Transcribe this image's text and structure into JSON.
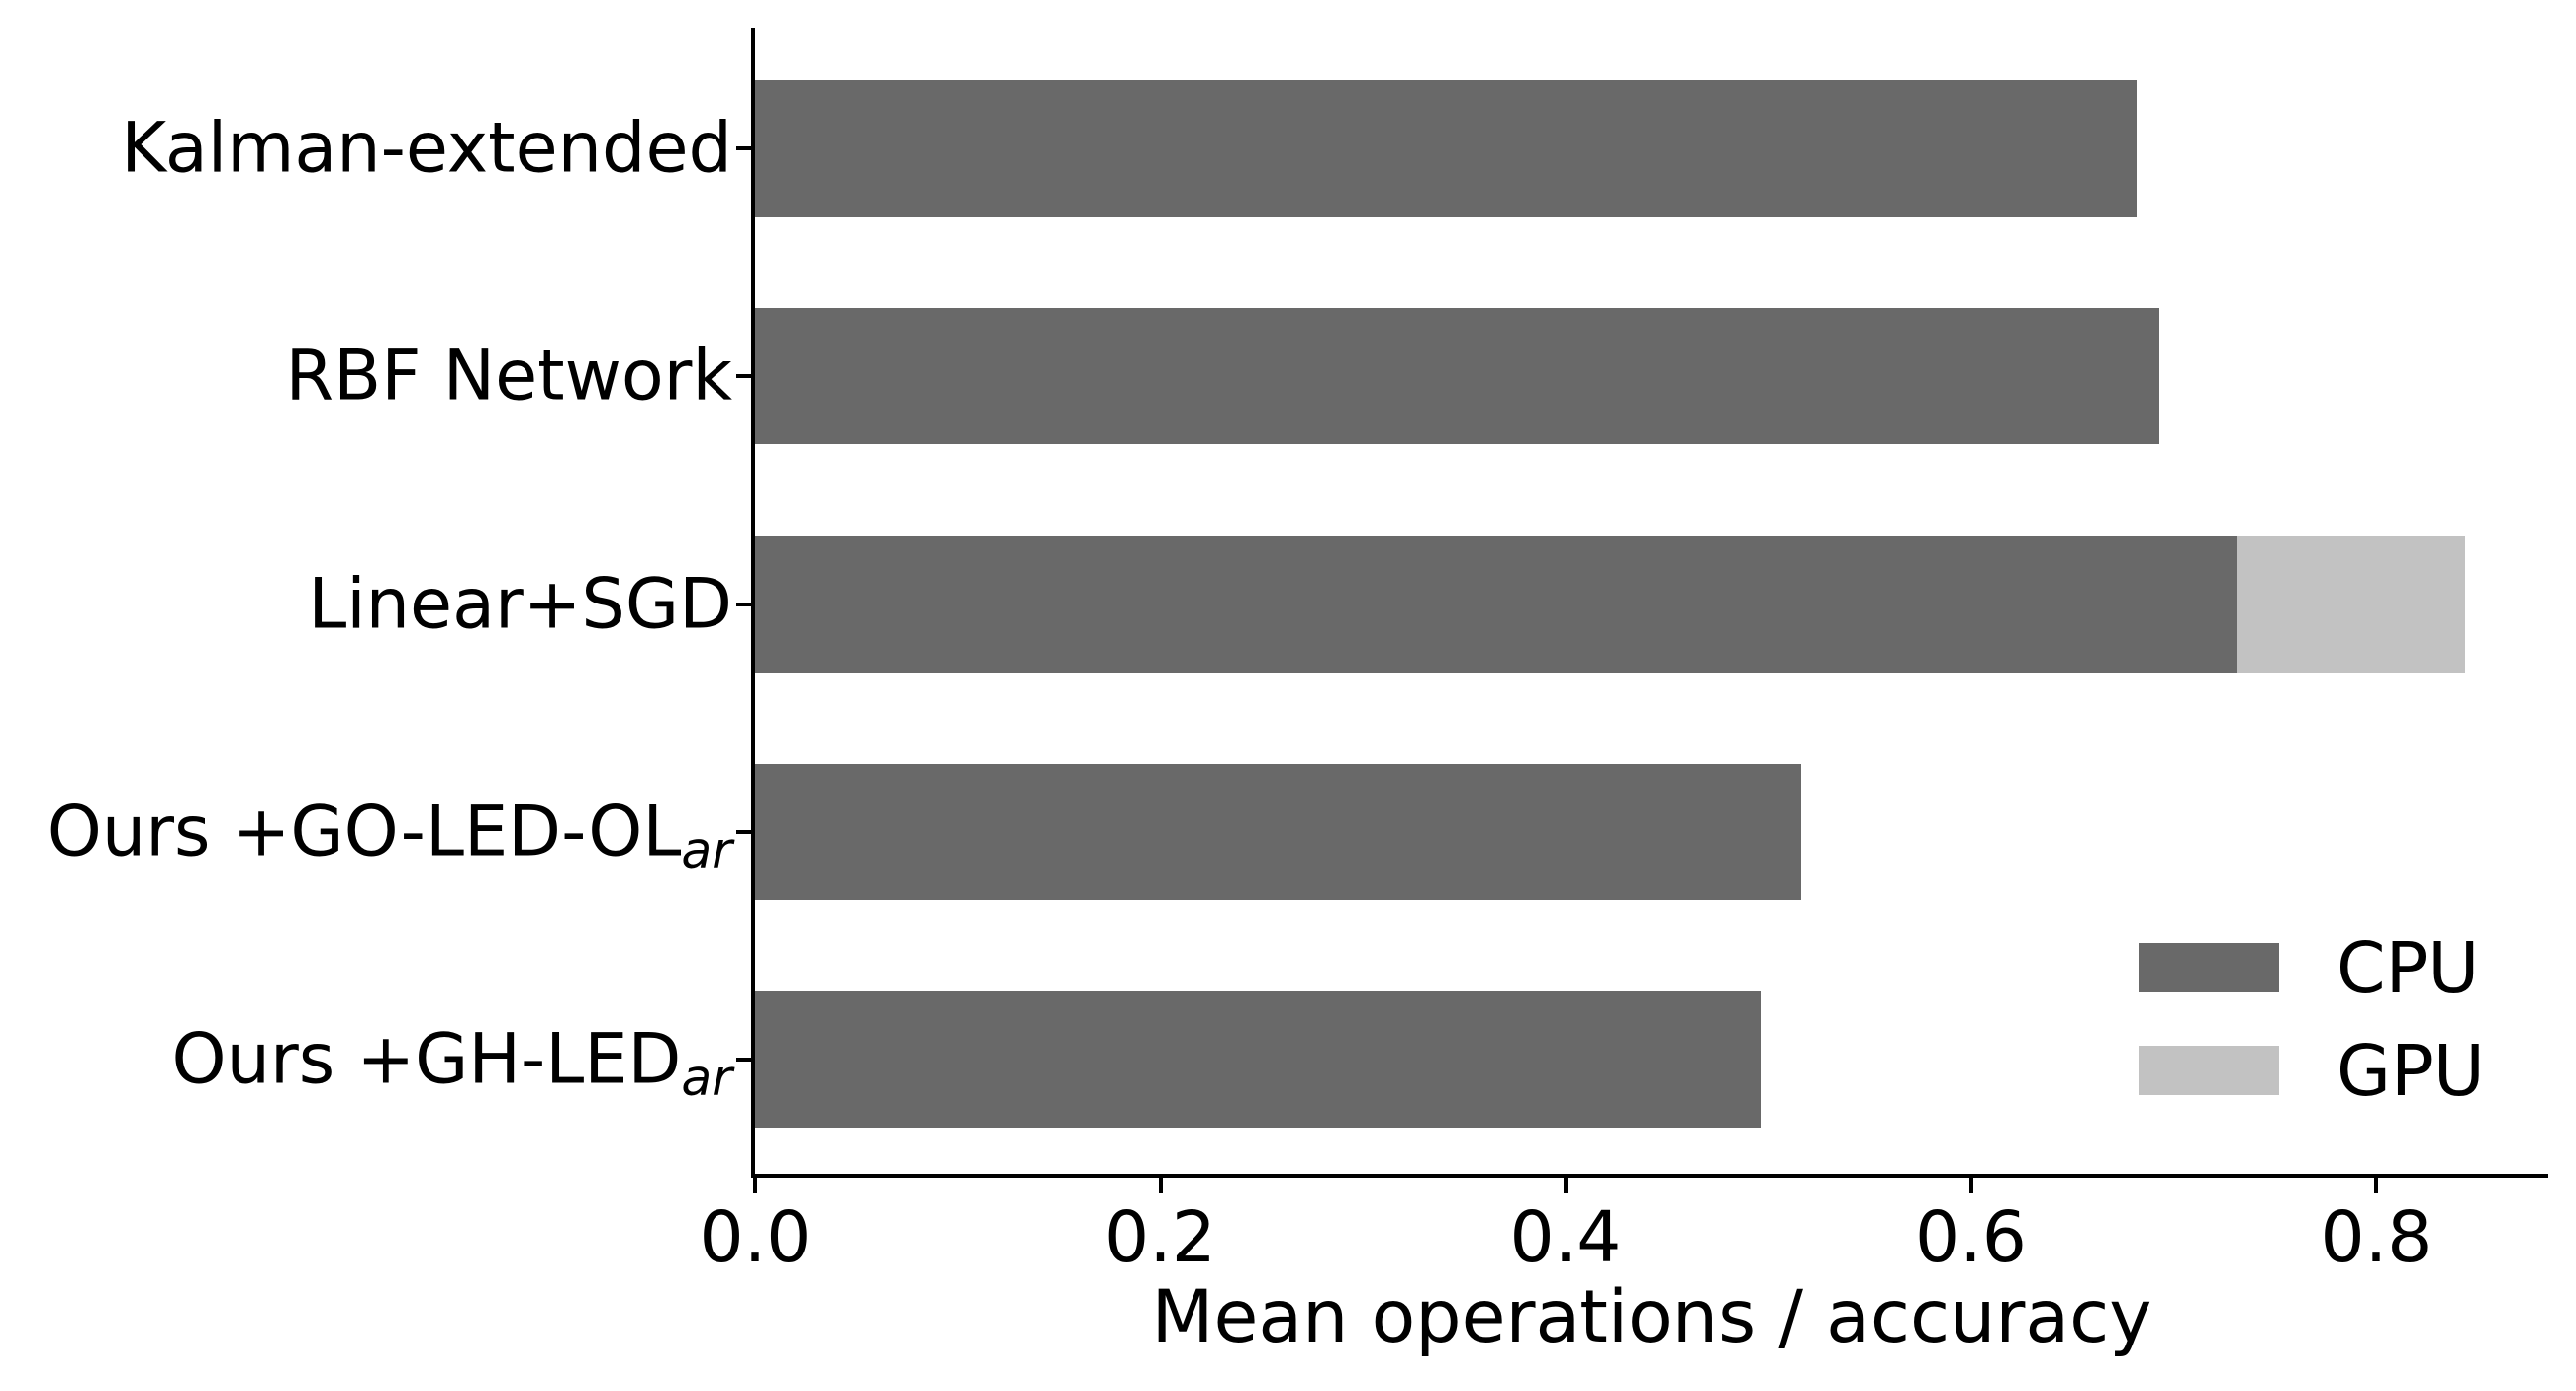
{
  "figure": {
    "background_color": "#ffffff",
    "text_color": "#000000",
    "spine_color": "#000000"
  },
  "chart_data": {
    "type": "bar",
    "orientation": "horizontal",
    "stacked": true,
    "grid": false,
    "title": "",
    "xlabel": "Mean operations / accuracy",
    "ylabel": "",
    "xlim": [
      0.0,
      0.887
    ],
    "x_ticks": [
      0.0,
      0.2,
      0.4,
      0.6,
      0.8
    ],
    "x_tick_labels": [
      "0.0",
      "0.2",
      "0.4",
      "0.6",
      "0.8"
    ],
    "categories": [
      {
        "text": "Kalman-extended",
        "sub": ""
      },
      {
        "text": "RBF Network",
        "sub": ""
      },
      {
        "text": "Linear+SGD",
        "sub": ""
      },
      {
        "text": "Ours +GO-LED-OL",
        "sub": "ar"
      },
      {
        "text": "Ours +GH-LED",
        "sub": "ar"
      }
    ],
    "series": [
      {
        "name": "CPU",
        "color": "#696969",
        "values": [
          0.682,
          0.693,
          0.731,
          0.516,
          0.496
        ]
      },
      {
        "name": "GPU",
        "color": "#c2c2c2",
        "values": [
          0.0,
          0.0,
          0.113,
          0.0,
          0.0
        ]
      }
    ],
    "legend": {
      "position": "lower right",
      "frame": false,
      "entries": [
        "CPU",
        "GPU"
      ]
    }
  }
}
